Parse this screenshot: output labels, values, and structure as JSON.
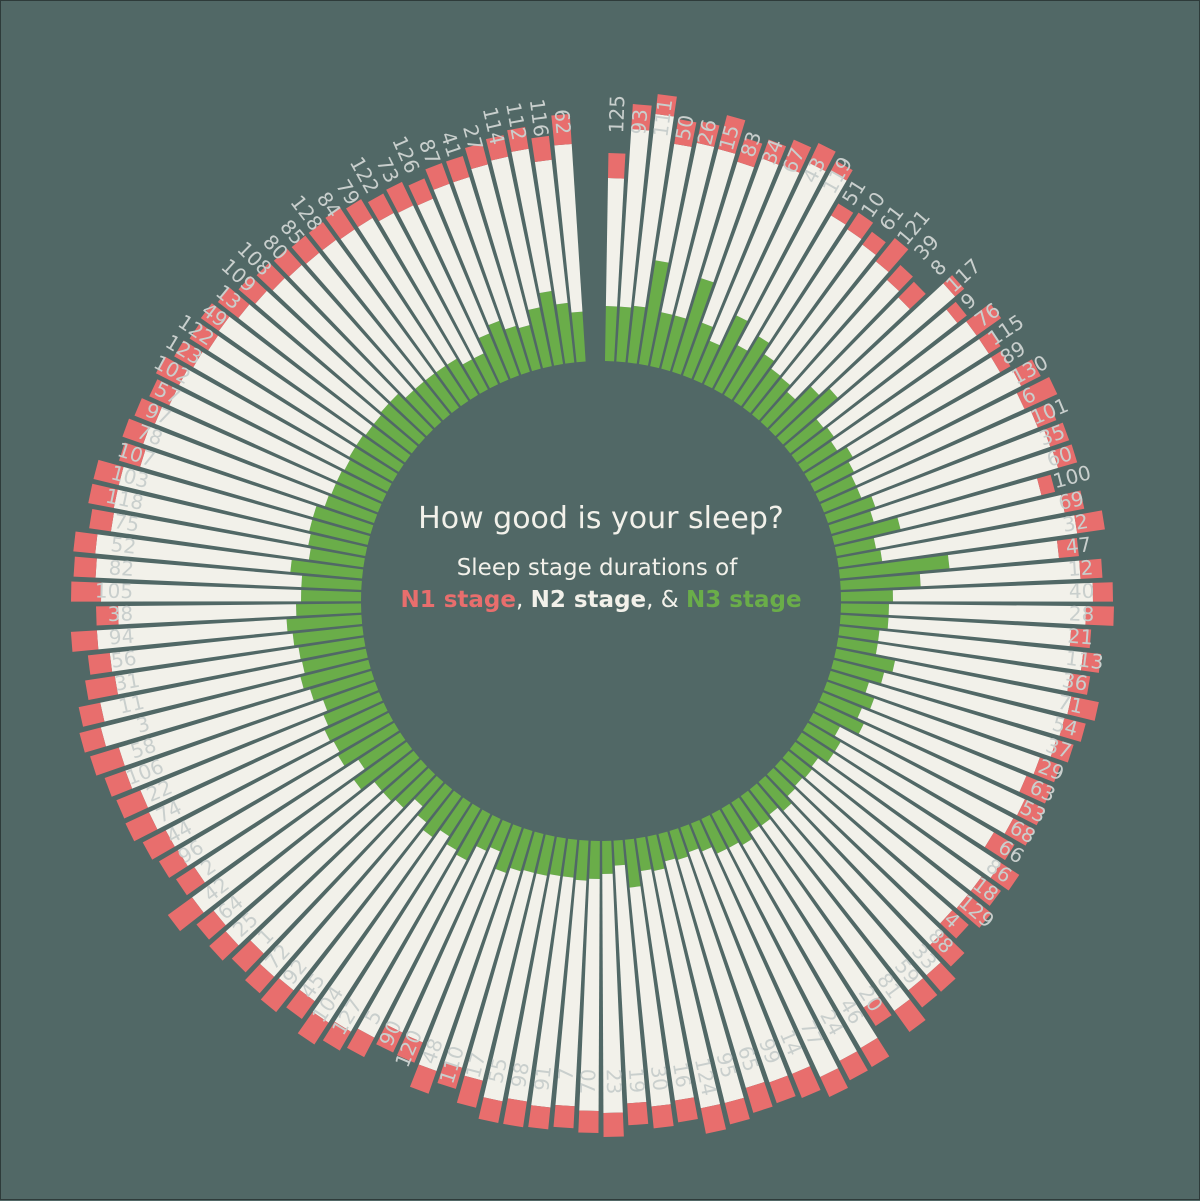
{
  "colors": {
    "background": "#516866",
    "n1": "#e86e6d",
    "n2": "#f2f1ea",
    "n3": "#6aad49",
    "label": "#c9cfcd"
  },
  "header": {
    "title": "How good is your sleep?",
    "subtitle": "Sleep stage durations of",
    "legend": [
      {
        "text": "N1 stage",
        "color": "#e86e6d"
      },
      {
        "sep": ", "
      },
      {
        "text": "N2 stage",
        "color": "#f2f1ea"
      },
      {
        "sep": ", & "
      },
      {
        "text": "N3 stage",
        "color": "#6aad49"
      }
    ]
  },
  "chart_data": {
    "type": "bar",
    "layout": "circular-stacked",
    "stack_order": [
      "N3",
      "N2",
      "N1"
    ],
    "categories": [
      "125",
      "93",
      "111",
      "50",
      "26",
      "15",
      "83",
      "34",
      "67",
      "43",
      "119",
      "51",
      "10",
      "61",
      "121",
      "39",
      "8",
      "117",
      "9",
      "76",
      "115",
      "89",
      "130",
      "6",
      "101",
      "35",
      "60",
      "100",
      "69",
      "32",
      "47",
      "12",
      "40",
      "28",
      "21",
      "113",
      "36",
      "71",
      "54",
      "37",
      "29",
      "63",
      "53",
      "68",
      "66",
      "86",
      "18",
      "129",
      "4",
      "88",
      "33",
      "59",
      "81",
      "20",
      "46",
      "24",
      "77",
      "14",
      "99",
      "65",
      "95",
      "124",
      "16",
      "30",
      "19",
      "23",
      "70",
      "7",
      "91",
      "98",
      "55",
      "17",
      "110",
      "48",
      "120",
      "90",
      "5",
      "127",
      "104",
      "45",
      "92",
      "72",
      "1",
      "25",
      "64",
      "42",
      "2",
      "96",
      "44",
      "74",
      "22",
      "106",
      "58",
      "3",
      "11",
      "31",
      "56",
      "94",
      "38",
      "105",
      "82",
      "52",
      "75",
      "118",
      "103",
      "107",
      "78",
      "97",
      "57",
      "102",
      "123",
      "122",
      "49",
      "13",
      "109",
      "108",
      "80",
      "85",
      "128",
      "84",
      "79",
      "122",
      "73",
      "126",
      "87",
      "41",
      "27",
      "114",
      "112",
      "116",
      "62"
    ],
    "series": [
      {
        "name": "N3",
        "values": [
          55,
          55,
          57,
          105,
          55,
          55,
          98,
          56,
          42,
          76,
          50,
          68,
          56,
          48,
          47,
          40,
          60,
          72,
          42,
          45,
          40,
          50,
          44,
          40,
          40,
          50,
          44,
          68,
          40,
          44,
          110,
          80,
          52,
          48,
          48,
          40,
          40,
          60,
          52,
          40,
          50,
          42,
          50,
          30,
          38,
          38,
          28,
          30,
          28,
          30,
          38,
          32,
          36,
          35,
          42,
          38,
          38,
          30,
          26,
          30,
          28,
          35,
          33,
          48,
          25,
          33,
          38,
          40,
          38,
          38,
          40,
          40,
          42,
          48,
          30,
          35,
          52,
          48,
          40,
          50,
          42,
          32,
          46,
          50,
          50,
          65,
          50,
          65,
          62,
          65,
          60,
          55,
          64,
          70,
          65,
          66,
          70,
          75,
          65,
          60,
          60,
          72,
          55,
          58,
          60,
          60,
          52,
          50,
          50,
          48,
          50,
          50,
          48,
          48,
          50,
          50,
          42,
          42,
          42,
          42,
          42,
          34,
          34,
          50,
          58,
          48,
          45,
          60,
          74,
          60,
          50
        ]
      },
      {
        "name": "N2",
        "values": [
          128,
          178,
          193,
          118,
          173,
          172,
          122,
          175,
          190,
          169,
          197,
          141,
          150,
          154,
          150,
          150,
          125,
          155,
          170,
          175,
          180,
          170,
          188,
          185,
          190,
          185,
          192,
          145,
          192,
          197,
          110,
          160,
          200,
          197,
          183,
          205,
          195,
          180,
          186,
          196,
          176,
          178,
          178,
          196,
          178,
          200,
          202,
          200,
          200,
          206,
          218,
          224,
          228,
          209,
          235,
          240,
          246,
          240,
          244,
          238,
          249,
          242,
          232,
          220,
          238,
          239,
          232,
          226,
          231,
          228,
          230,
          214,
          205,
          210,
          206,
          200,
          200,
          210,
          222,
          202,
          214,
          226,
          202,
          210,
          206,
          200,
          196,
          186,
          190,
          194,
          198,
          210,
          200,
          206,
          206,
          186,
          184,
          190,
          178,
          200,
          206,
          196,
          200,
          198,
          196,
          180,
          192,
          190,
          184,
          186,
          180,
          176,
          180,
          172,
          166,
          162,
          168,
          166,
          166,
          164,
          164,
          166,
          164,
          146,
          146,
          156,
          166,
          154,
          144,
          144,
          168
        ]
      },
      {
        "name": "N1",
        "values": [
          25,
          25,
          20,
          25,
          22,
          35,
          25,
          20,
          28,
          22,
          12,
          14,
          20,
          16,
          30,
          20,
          22,
          12,
          12,
          30,
          14,
          12,
          22,
          36,
          20,
          20,
          20,
          14,
          20,
          28,
          20,
          22,
          20,
          28,
          20,
          18,
          20,
          28,
          22,
          18,
          22,
          28,
          22,
          24,
          24,
          22,
          24,
          30,
          22,
          30,
          22,
          22,
          26,
          22,
          22,
          22,
          22,
          26,
          22,
          26,
          22,
          26,
          22,
          22,
          22,
          24,
          22,
          22,
          22,
          26,
          22,
          28,
          22,
          24,
          22,
          22,
          22,
          22,
          26,
          22,
          28,
          22,
          26,
          22,
          22,
          30,
          22,
          22,
          26,
          26,
          26,
          22,
          30,
          22,
          22,
          30,
          22,
          26,
          22,
          30,
          22,
          22,
          22,
          26,
          26,
          22,
          22,
          22,
          22,
          26,
          22,
          22,
          22,
          26,
          22,
          22,
          22,
          22,
          22,
          26,
          22,
          22,
          26,
          22,
          22,
          22,
          22,
          22,
          22,
          24,
          30
        ]
      }
    ]
  }
}
